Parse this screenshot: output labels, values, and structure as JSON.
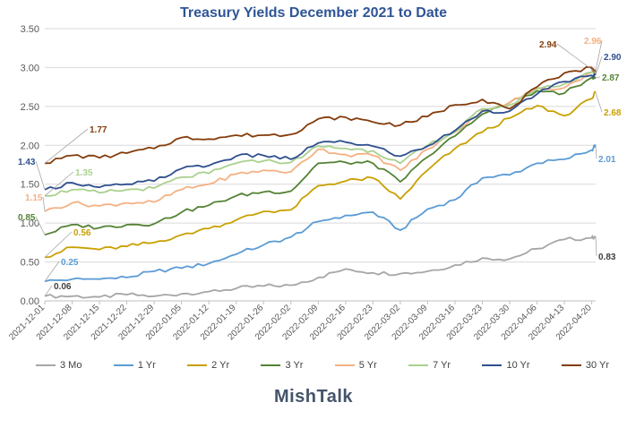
{
  "brand": "MishTalk",
  "colors": {
    "3 Mo": "#a6a6a6",
    "1 Yr": "#5b9bd5",
    "2 Yr": "#c9a000",
    "3 Yr": "#548235",
    "5 Yr": "#f4b183",
    "7 Yr": "#a9d18e",
    "10 Yr": "#2f4f8f",
    "30 Yr": "#843c0c"
  },
  "chart_data": {
    "type": "line",
    "title": "Treasury Yields December 2021 to Date",
    "xlabel": "",
    "ylabel": "",
    "ylim": [
      0,
      3.5
    ],
    "yticks": [
      "0.00",
      "0.50",
      "1.00",
      "1.50",
      "2.00",
      "2.50",
      "3.00",
      "3.50"
    ],
    "xlim": [
      "2021-12-01",
      "2022-04-21"
    ],
    "xticks": [
      "2021-12-01",
      "2021-12-08",
      "2021-12-15",
      "2021-12-22",
      "2021-12-29",
      "2022-01-05",
      "2022-01-12",
      "2022-01-19",
      "2022-01-26",
      "2022-02-02",
      "2022-02-09",
      "2022-02-16",
      "2022-02-23",
      "2022-03-02",
      "2022-03-09",
      "2022-03-16",
      "2022-03-23",
      "2022-03-30",
      "2022-04-06",
      "2022-04-13",
      "2022-04-20"
    ],
    "grid": "horizontal",
    "legend": "bottom",
    "series": [
      {
        "name": "3 Mo",
        "start_label": "0.06",
        "end_label": "0.83",
        "points": [
          [
            "2021-12-01",
            0.06
          ],
          [
            "2021-12-08",
            0.06
          ],
          [
            "2021-12-15",
            0.05
          ],
          [
            "2021-12-22",
            0.08
          ],
          [
            "2021-12-29",
            0.06
          ],
          [
            "2022-01-05",
            0.09
          ],
          [
            "2022-01-12",
            0.12
          ],
          [
            "2022-01-19",
            0.16
          ],
          [
            "2022-01-26",
            0.19
          ],
          [
            "2022-02-02",
            0.2
          ],
          [
            "2022-02-09",
            0.3
          ],
          [
            "2022-02-16",
            0.41
          ],
          [
            "2022-02-23",
            0.36
          ],
          [
            "2022-03-02",
            0.35
          ],
          [
            "2022-03-09",
            0.38
          ],
          [
            "2022-03-16",
            0.46
          ],
          [
            "2022-03-23",
            0.55
          ],
          [
            "2022-03-30",
            0.54
          ],
          [
            "2022-04-06",
            0.67
          ],
          [
            "2022-04-13",
            0.79
          ],
          [
            "2022-04-20",
            0.81
          ],
          [
            "2022-04-21",
            0.83
          ]
        ]
      },
      {
        "name": "1 Yr",
        "start_label": "0.25",
        "end_label": "2.01",
        "points": [
          [
            "2021-12-01",
            0.25
          ],
          [
            "2021-12-08",
            0.28
          ],
          [
            "2021-12-15",
            0.28
          ],
          [
            "2021-12-22",
            0.3
          ],
          [
            "2021-12-29",
            0.38
          ],
          [
            "2022-01-05",
            0.42
          ],
          [
            "2022-01-12",
            0.48
          ],
          [
            "2022-01-19",
            0.6
          ],
          [
            "2022-01-26",
            0.72
          ],
          [
            "2022-02-02",
            0.82
          ],
          [
            "2022-02-09",
            1.02
          ],
          [
            "2022-02-16",
            1.1
          ],
          [
            "2022-02-23",
            1.14
          ],
          [
            "2022-03-02",
            0.91
          ],
          [
            "2022-03-09",
            1.18
          ],
          [
            "2022-03-16",
            1.3
          ],
          [
            "2022-03-23",
            1.58
          ],
          [
            "2022-03-30",
            1.62
          ],
          [
            "2022-04-06",
            1.77
          ],
          [
            "2022-04-13",
            1.82
          ],
          [
            "2022-04-20",
            1.94
          ],
          [
            "2022-04-21",
            2.01
          ]
        ]
      },
      {
        "name": "2 Yr",
        "start_label": "0.56",
        "end_label": "2.68",
        "points": [
          [
            "2021-12-01",
            0.56
          ],
          [
            "2021-12-08",
            0.69
          ],
          [
            "2021-12-15",
            0.66
          ],
          [
            "2021-12-22",
            0.7
          ],
          [
            "2021-12-29",
            0.75
          ],
          [
            "2022-01-05",
            0.85
          ],
          [
            "2022-01-12",
            0.93
          ],
          [
            "2022-01-19",
            1.04
          ],
          [
            "2022-01-26",
            1.15
          ],
          [
            "2022-02-02",
            1.17
          ],
          [
            "2022-02-09",
            1.48
          ],
          [
            "2022-02-16",
            1.54
          ],
          [
            "2022-02-23",
            1.58
          ],
          [
            "2022-03-02",
            1.31
          ],
          [
            "2022-03-09",
            1.68
          ],
          [
            "2022-03-16",
            1.96
          ],
          [
            "2022-03-23",
            2.17
          ],
          [
            "2022-03-30",
            2.35
          ],
          [
            "2022-04-06",
            2.51
          ],
          [
            "2022-04-13",
            2.38
          ],
          [
            "2022-04-20",
            2.6
          ],
          [
            "2022-04-21",
            2.68
          ]
        ]
      },
      {
        "name": "3 Yr",
        "start_label": "0.85",
        "end_label": "2.87",
        "points": [
          [
            "2021-12-01",
            0.85
          ],
          [
            "2021-12-08",
            0.98
          ],
          [
            "2021-12-15",
            0.94
          ],
          [
            "2021-12-22",
            0.98
          ],
          [
            "2021-12-29",
            0.99
          ],
          [
            "2022-01-05",
            1.14
          ],
          [
            "2022-01-12",
            1.23
          ],
          [
            "2022-01-19",
            1.35
          ],
          [
            "2022-01-26",
            1.4
          ],
          [
            "2022-02-02",
            1.41
          ],
          [
            "2022-02-09",
            1.77
          ],
          [
            "2022-02-16",
            1.78
          ],
          [
            "2022-02-23",
            1.77
          ],
          [
            "2022-03-02",
            1.53
          ],
          [
            "2022-03-09",
            1.85
          ],
          [
            "2022-03-16",
            2.12
          ],
          [
            "2022-03-23",
            2.4
          ],
          [
            "2022-03-30",
            2.55
          ],
          [
            "2022-04-06",
            2.7
          ],
          [
            "2022-04-13",
            2.67
          ],
          [
            "2022-04-20",
            2.87
          ],
          [
            "2022-04-21",
            2.87
          ]
        ]
      },
      {
        "name": "5 Yr",
        "start_label": "1.15",
        "end_label": "2.96",
        "points": [
          [
            "2021-12-01",
            1.15
          ],
          [
            "2021-12-08",
            1.26
          ],
          [
            "2021-12-15",
            1.22
          ],
          [
            "2021-12-22",
            1.26
          ],
          [
            "2021-12-29",
            1.27
          ],
          [
            "2022-01-05",
            1.43
          ],
          [
            "2022-01-12",
            1.5
          ],
          [
            "2022-01-19",
            1.63
          ],
          [
            "2022-01-26",
            1.68
          ],
          [
            "2022-02-02",
            1.66
          ],
          [
            "2022-02-09",
            1.95
          ],
          [
            "2022-02-16",
            1.88
          ],
          [
            "2022-02-23",
            1.87
          ],
          [
            "2022-03-02",
            1.68
          ],
          [
            "2022-03-09",
            1.95
          ],
          [
            "2022-03-16",
            2.17
          ],
          [
            "2022-03-23",
            2.45
          ],
          [
            "2022-03-30",
            2.55
          ],
          [
            "2022-04-06",
            2.73
          ],
          [
            "2022-04-13",
            2.74
          ],
          [
            "2022-04-20",
            2.94
          ],
          [
            "2022-04-21",
            2.96
          ]
        ]
      },
      {
        "name": "7 Yr",
        "start_label": "1.35",
        "end_label": "",
        "points": [
          [
            "2021-12-01",
            1.35
          ],
          [
            "2021-12-08",
            1.43
          ],
          [
            "2021-12-15",
            1.39
          ],
          [
            "2021-12-22",
            1.43
          ],
          [
            "2021-12-29",
            1.45
          ],
          [
            "2022-01-05",
            1.59
          ],
          [
            "2022-01-12",
            1.64
          ],
          [
            "2022-01-19",
            1.77
          ],
          [
            "2022-01-26",
            1.8
          ],
          [
            "2022-02-02",
            1.78
          ],
          [
            "2022-02-09",
            1.99
          ],
          [
            "2022-02-16",
            1.96
          ],
          [
            "2022-02-23",
            1.93
          ],
          [
            "2022-03-02",
            1.77
          ],
          [
            "2022-03-09",
            2.0
          ],
          [
            "2022-03-16",
            2.18
          ],
          [
            "2022-03-23",
            2.47
          ],
          [
            "2022-03-30",
            2.52
          ],
          [
            "2022-04-06",
            2.73
          ],
          [
            "2022-04-13",
            2.79
          ],
          [
            "2022-04-20",
            2.94
          ],
          [
            "2022-04-21",
            2.94
          ]
        ]
      },
      {
        "name": "10 Yr",
        "start_label": "1.43",
        "end_label": "2.90",
        "points": [
          [
            "2021-12-01",
            1.43
          ],
          [
            "2021-12-08",
            1.52
          ],
          [
            "2021-12-15",
            1.46
          ],
          [
            "2021-12-22",
            1.5
          ],
          [
            "2021-12-29",
            1.54
          ],
          [
            "2022-01-05",
            1.7
          ],
          [
            "2022-01-12",
            1.74
          ],
          [
            "2022-01-19",
            1.86
          ],
          [
            "2022-01-26",
            1.87
          ],
          [
            "2022-02-02",
            1.82
          ],
          [
            "2022-02-09",
            2.03
          ],
          [
            "2022-02-16",
            2.04
          ],
          [
            "2022-02-23",
            1.99
          ],
          [
            "2022-03-02",
            1.86
          ],
          [
            "2022-03-09",
            1.99
          ],
          [
            "2022-03-16",
            2.19
          ],
          [
            "2022-03-23",
            2.44
          ],
          [
            "2022-03-30",
            2.44
          ],
          [
            "2022-04-06",
            2.66
          ],
          [
            "2022-04-13",
            2.82
          ],
          [
            "2022-04-20",
            2.9
          ],
          [
            "2022-04-21",
            2.9
          ]
        ]
      },
      {
        "name": "30 Yr",
        "start_label": "1.77",
        "end_label": "2.94",
        "points": [
          [
            "2021-12-01",
            1.77
          ],
          [
            "2021-12-08",
            1.87
          ],
          [
            "2021-12-15",
            1.84
          ],
          [
            "2021-12-22",
            1.9
          ],
          [
            "2021-12-29",
            1.96
          ],
          [
            "2022-01-05",
            2.1
          ],
          [
            "2022-01-12",
            2.08
          ],
          [
            "2022-01-19",
            2.13
          ],
          [
            "2022-01-26",
            2.13
          ],
          [
            "2022-02-02",
            2.14
          ],
          [
            "2022-02-09",
            2.34
          ],
          [
            "2022-02-16",
            2.36
          ],
          [
            "2022-02-23",
            2.3
          ],
          [
            "2022-03-02",
            2.26
          ],
          [
            "2022-03-09",
            2.37
          ],
          [
            "2022-03-16",
            2.52
          ],
          [
            "2022-03-23",
            2.59
          ],
          [
            "2022-03-30",
            2.47
          ],
          [
            "2022-04-06",
            2.75
          ],
          [
            "2022-04-13",
            2.93
          ],
          [
            "2022-04-20",
            3.0
          ],
          [
            "2022-04-21",
            2.94
          ]
        ]
      }
    ]
  }
}
